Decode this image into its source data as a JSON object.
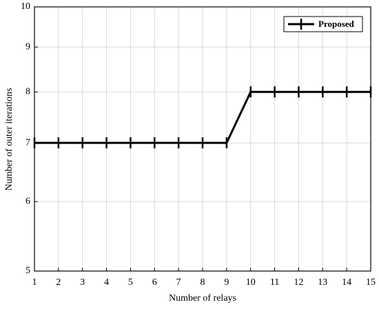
{
  "chart_data": {
    "type": "line",
    "x_label": "Number of relays",
    "y_label": "Number of outer iterations",
    "x": [
      1,
      2,
      3,
      4,
      5,
      6,
      7,
      8,
      9,
      10,
      11,
      12,
      13,
      14,
      15
    ],
    "series": [
      {
        "name": "Proposed",
        "color": "#000000",
        "values": [
          7,
          7,
          7,
          7,
          7,
          7,
          7,
          7,
          7,
          8,
          8,
          8,
          8,
          8,
          8
        ]
      }
    ],
    "xlim": [
      1,
      15
    ],
    "xticks": [
      1,
      2,
      3,
      4,
      5,
      6,
      7,
      8,
      9,
      10,
      11,
      12,
      13,
      14,
      15
    ],
    "ylim": [
      5,
      10
    ],
    "yticks": [
      5,
      6,
      7,
      8,
      9,
      10
    ],
    "y_scale": "log",
    "grid": true,
    "legend": "upper right"
  }
}
